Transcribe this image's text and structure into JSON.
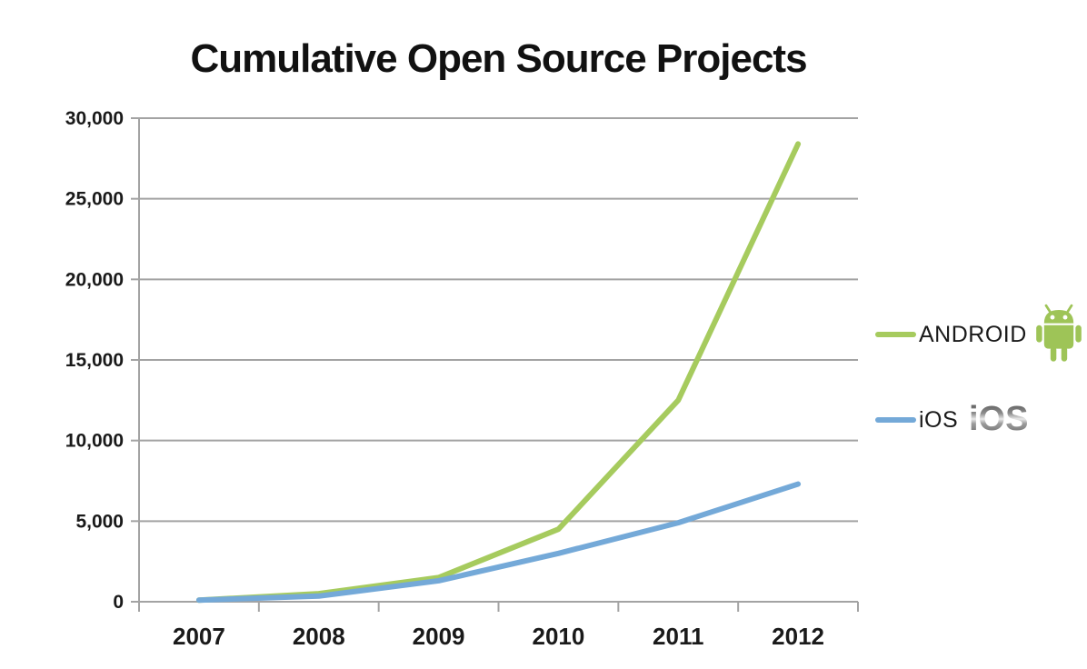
{
  "title": "Cumulative Open Source Projects",
  "chart_data": {
    "type": "line",
    "title": "Cumulative Open Source Projects",
    "xlabel": "",
    "ylabel": "",
    "x_labels": [
      "2007",
      "2008",
      "2009",
      "2010",
      "2011",
      "2012"
    ],
    "series": [
      {
        "name": "ANDROID",
        "color": "#a6cb5e",
        "values": [
          100,
          500,
          1500,
          4500,
          12500,
          28400
        ]
      },
      {
        "name": "iOS",
        "color": "#74a9d8",
        "values": [
          100,
          350,
          1300,
          3000,
          4900,
          7300
        ]
      }
    ],
    "ylim": [
      0,
      30000
    ],
    "y_tick_step": 5000,
    "y_tick_labels": [
      "0",
      "5,000",
      "10,000",
      "15,000",
      "20,000",
      "25,000",
      "30,000"
    ],
    "grid": "horizontal",
    "legend_position": "right"
  },
  "legend": {
    "android": {
      "label": "ANDROID"
    },
    "ios": {
      "label": "iOS",
      "logo_text": "iOS"
    }
  },
  "colors": {
    "android_line": "#a6cb5e",
    "ios_line": "#74a9d8",
    "android_robot": "#9ec457",
    "grid": "#a3a3a3",
    "text": "#1a1a1a"
  }
}
